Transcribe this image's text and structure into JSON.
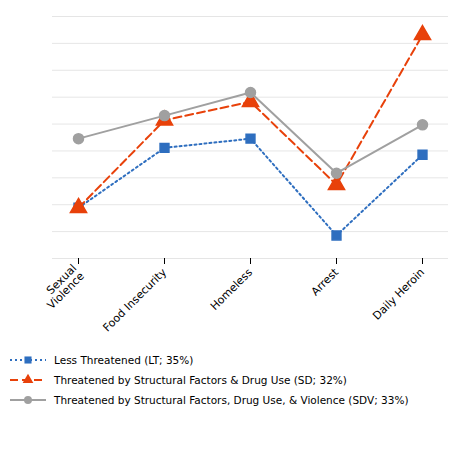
{
  "chart_data": {
    "type": "line",
    "categories": [
      "Sexual\nViolence",
      "Food Insecurity",
      "Homeless",
      "Arrest",
      "Daily Heroin"
    ],
    "series": [
      {
        "name": "Less Threatened (LT; 35%)",
        "color": "#2E6EBF",
        "values": [
          0.22,
          0.48,
          0.52,
          0.1,
          0.45
        ],
        "marker": "square",
        "line_style": "dotted"
      },
      {
        "name": "Threatened by Structural Factors & Drug Use (SD; 32%)",
        "color": "#E8410A",
        "values": [
          0.22,
          0.6,
          0.68,
          0.32,
          0.97
        ],
        "marker": "triangle",
        "line_style": "dashed"
      },
      {
        "name": "Threatened by Structural Factors, Drug Use, & Violence (SDV; 33%)",
        "color": "#A0A0A0",
        "values": [
          0.52,
          0.62,
          0.72,
          0.37,
          0.58
        ],
        "marker": "circle",
        "line_style": "solid"
      }
    ],
    "ylim": [
      0.0,
      1.05
    ],
    "yticks": [
      0.0,
      0.11666666666666667,
      0.23333333333333334,
      0.35,
      0.4666666666666667,
      0.5833333333333334,
      0.7000000000000001,
      0.8166666666666667,
      0.9333333333333333,
      1.05
    ],
    "grid": true,
    "tick_labels": "x",
    "legend": "lower left"
  }
}
